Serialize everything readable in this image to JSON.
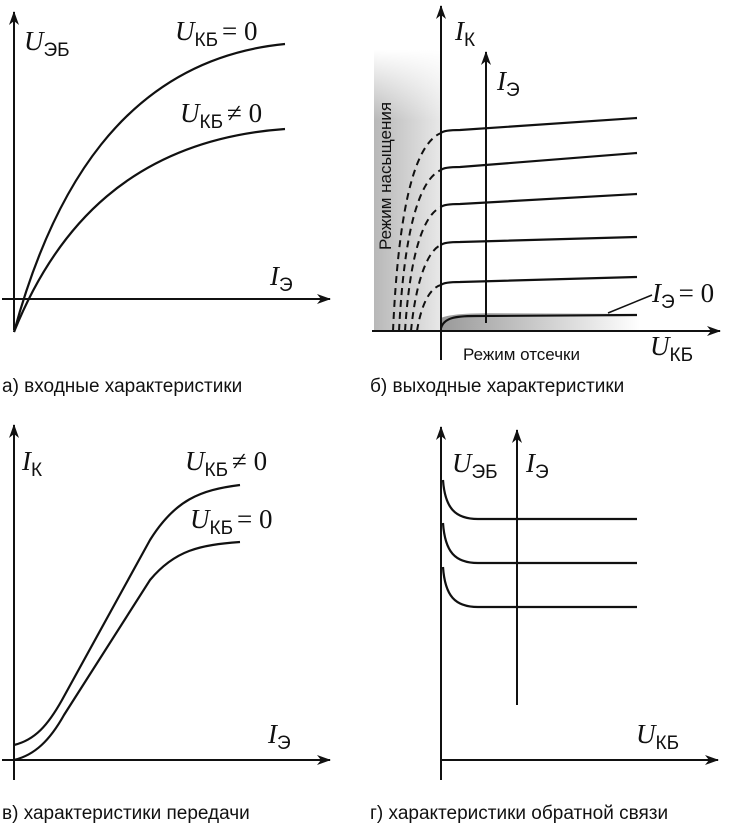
{
  "panels": {
    "a": {
      "caption": "а) входные характеристики",
      "y_axis": {
        "symbol": "U",
        "subscript": "ЭБ"
      },
      "x_axis": {
        "symbol": "I",
        "subscript": "Э"
      },
      "curve1": {
        "symbol": "U",
        "subscript": "КБ",
        "relation": "= 0"
      },
      "curve2": {
        "symbol": "U",
        "subscript": "КБ",
        "relation": "≠ 0"
      }
    },
    "b": {
      "caption": "б) выходные характеристики",
      "y_axis": {
        "symbol": "I",
        "subscript": "К"
      },
      "x_axis": {
        "symbol": "U",
        "subscript": "КБ"
      },
      "inner_axis": {
        "symbol": "I",
        "subscript": "Э"
      },
      "zero_curve": {
        "symbol": "I",
        "subscript": "Э",
        "relation": "= 0"
      },
      "saturation_label": "Режим насыщения",
      "cutoff_label": "Режим отсечки"
    },
    "c": {
      "caption": "в) характеристики передачи",
      "y_axis": {
        "symbol": "I",
        "subscript": "К"
      },
      "x_axis": {
        "symbol": "I",
        "subscript": "Э"
      },
      "curve1": {
        "symbol": "U",
        "subscript": "КБ",
        "relation": "≠ 0"
      },
      "curve2": {
        "symbol": "U",
        "subscript": "КБ",
        "relation": "= 0"
      }
    },
    "d": {
      "caption": "г) характеристики обратной связи",
      "y_axis": {
        "symbol": "U",
        "subscript": "ЭБ"
      },
      "x_axis": {
        "symbol": "U",
        "subscript": "КБ"
      },
      "inner_axis": {
        "symbol": "I",
        "subscript": "Э"
      }
    }
  }
}
